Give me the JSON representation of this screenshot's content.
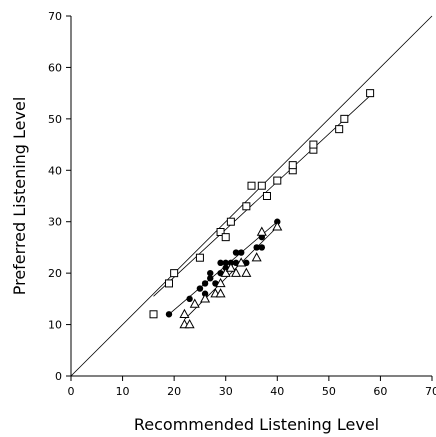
{
  "chart_data": {
    "type": "scatter",
    "title": "",
    "xlabel": "Recommended Listening Level",
    "ylabel": "Preferred Listening Level",
    "xlim": [
      0,
      70
    ],
    "ylim": [
      0,
      70
    ],
    "x_ticks": [
      "0",
      "10",
      "20",
      "30",
      "40",
      "50",
      "60",
      "70"
    ],
    "y_ticks": [
      "0",
      "10",
      "20",
      "30",
      "40",
      "50",
      "60",
      "70"
    ],
    "grid": false,
    "legend": "none",
    "reference_line": {
      "from": [
        0,
        0
      ],
      "to": [
        70,
        70
      ],
      "style": "identity"
    },
    "series": [
      {
        "marker": "open-square",
        "points": [
          [
            16,
            12
          ],
          [
            19,
            18
          ],
          [
            20,
            20
          ],
          [
            25,
            23
          ],
          [
            29,
            28
          ],
          [
            30,
            27
          ],
          [
            31,
            30
          ],
          [
            34,
            33
          ],
          [
            35,
            37
          ],
          [
            37,
            37
          ],
          [
            38,
            35
          ],
          [
            40,
            38
          ],
          [
            43,
            40
          ],
          [
            43,
            41
          ],
          [
            47,
            44
          ],
          [
            47,
            45
          ],
          [
            52,
            48
          ],
          [
            53,
            50
          ],
          [
            58,
            55
          ]
        ],
        "fit": {
          "from": [
            16,
            15.5
          ],
          "to": [
            58,
            54.5
          ]
        }
      },
      {
        "marker": "filled-circle",
        "points": [
          [
            19,
            12
          ],
          [
            23,
            15
          ],
          [
            25,
            17
          ],
          [
            26,
            16
          ],
          [
            26,
            18
          ],
          [
            27,
            19
          ],
          [
            27,
            20
          ],
          [
            28,
            18
          ],
          [
            29,
            20
          ],
          [
            29,
            22
          ],
          [
            30,
            21
          ],
          [
            30,
            22
          ],
          [
            31,
            22
          ],
          [
            32,
            22
          ],
          [
            32,
            24
          ],
          [
            33,
            24
          ],
          [
            34,
            22
          ],
          [
            36,
            25
          ],
          [
            37,
            27
          ],
          [
            37,
            25
          ],
          [
            40,
            30
          ]
        ],
        "fit": {
          "from": [
            19,
            12
          ],
          "to": [
            40,
            30
          ]
        }
      },
      {
        "marker": "open-triangle",
        "points": [
          [
            22,
            10
          ],
          [
            22,
            12
          ],
          [
            23,
            10
          ],
          [
            24,
            14
          ],
          [
            26,
            15
          ],
          [
            28,
            16
          ],
          [
            29,
            16
          ],
          [
            29,
            18
          ],
          [
            30,
            20
          ],
          [
            31,
            21
          ],
          [
            32,
            20
          ],
          [
            33,
            22
          ],
          [
            34,
            20
          ],
          [
            36,
            23
          ],
          [
            37,
            28
          ],
          [
            40,
            29
          ]
        ],
        "fit": {
          "from": [
            22,
            11
          ],
          "to": [
            40,
            29
          ]
        }
      }
    ]
  }
}
